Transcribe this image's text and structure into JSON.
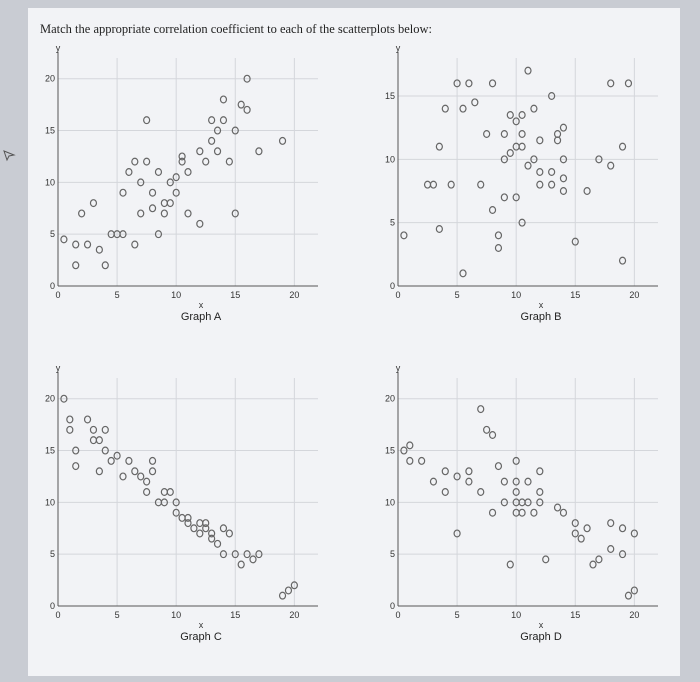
{
  "prompt": "Match the appropriate correlation coefficient to each of the scatterplots below:",
  "chart_data": [
    {
      "type": "scatter",
      "title": "Graph A",
      "xlabel": "x",
      "ylabel": "y",
      "xlim": [
        0,
        22
      ],
      "ylim": [
        0,
        22
      ],
      "xticks": [
        "0",
        "5",
        "10",
        "15",
        "20"
      ],
      "yticks": [
        "0",
        "5",
        "10",
        "15",
        "20"
      ],
      "points": [
        [
          0.5,
          4.5
        ],
        [
          1.5,
          2
        ],
        [
          1.5,
          4
        ],
        [
          2,
          7
        ],
        [
          2.5,
          4
        ],
        [
          3,
          8
        ],
        [
          3.5,
          3.5
        ],
        [
          4,
          2
        ],
        [
          4.5,
          5
        ],
        [
          5,
          5
        ],
        [
          5.5,
          5
        ],
        [
          5.5,
          9
        ],
        [
          6,
          11
        ],
        [
          6.5,
          4
        ],
        [
          6.5,
          12
        ],
        [
          7,
          7
        ],
        [
          7,
          10
        ],
        [
          7.5,
          16
        ],
        [
          7.5,
          12
        ],
        [
          8,
          7.5
        ],
        [
          8,
          9
        ],
        [
          8.5,
          5
        ],
        [
          8.5,
          11
        ],
        [
          9,
          7
        ],
        [
          9,
          8
        ],
        [
          9.5,
          8
        ],
        [
          9.5,
          10
        ],
        [
          10,
          9
        ],
        [
          10,
          10.5
        ],
        [
          10.5,
          12
        ],
        [
          10.5,
          12.5
        ],
        [
          11,
          11
        ],
        [
          11,
          7
        ],
        [
          12,
          6
        ],
        [
          12,
          13
        ],
        [
          12.5,
          12
        ],
        [
          13,
          16
        ],
        [
          13,
          14
        ],
        [
          13.5,
          13
        ],
        [
          13.5,
          15
        ],
        [
          14,
          16
        ],
        [
          14,
          18
        ],
        [
          14.5,
          12
        ],
        [
          15,
          7
        ],
        [
          15,
          15
        ],
        [
          15.5,
          17.5
        ],
        [
          16,
          20
        ],
        [
          16,
          17
        ],
        [
          17,
          13
        ],
        [
          19,
          14
        ]
      ]
    },
    {
      "type": "scatter",
      "title": "Graph B",
      "xlabel": "x",
      "ylabel": "y",
      "xlim": [
        0,
        22
      ],
      "ylim": [
        0,
        18
      ],
      "xticks": [
        "0",
        "5",
        "10",
        "15",
        "20"
      ],
      "yticks": [
        "0",
        "5",
        "10",
        "15"
      ],
      "points": [
        [
          0.5,
          4
        ],
        [
          2.5,
          8
        ],
        [
          3,
          8
        ],
        [
          3.5,
          11
        ],
        [
          3.5,
          4.5
        ],
        [
          4,
          14
        ],
        [
          4.5,
          8
        ],
        [
          5,
          16
        ],
        [
          5.5,
          14
        ],
        [
          5.5,
          1
        ],
        [
          6,
          16
        ],
        [
          6.5,
          14.5
        ],
        [
          7,
          8
        ],
        [
          7.5,
          12
        ],
        [
          8,
          16
        ],
        [
          8,
          6
        ],
        [
          8.5,
          4
        ],
        [
          8.5,
          3
        ],
        [
          9,
          7
        ],
        [
          9,
          10
        ],
        [
          9,
          12
        ],
        [
          9.5,
          13.5
        ],
        [
          9.5,
          10.5
        ],
        [
          10,
          7
        ],
        [
          10,
          11
        ],
        [
          10,
          13
        ],
        [
          10.5,
          11
        ],
        [
          10.5,
          13.5
        ],
        [
          10.5,
          12
        ],
        [
          10.5,
          5
        ],
        [
          11,
          9.5
        ],
        [
          11,
          17
        ],
        [
          11.5,
          10
        ],
        [
          11.5,
          14
        ],
        [
          12,
          11.5
        ],
        [
          12,
          8
        ],
        [
          12,
          9
        ],
        [
          13,
          15
        ],
        [
          13,
          8
        ],
        [
          13,
          9
        ],
        [
          13.5,
          11.5
        ],
        [
          13.5,
          12
        ],
        [
          14,
          12.5
        ],
        [
          14,
          10
        ],
        [
          14,
          8.5
        ],
        [
          14,
          7.5
        ],
        [
          15,
          3.5
        ],
        [
          16,
          7.5
        ],
        [
          17,
          10
        ],
        [
          18,
          9.5
        ],
        [
          18,
          16
        ],
        [
          19,
          11
        ],
        [
          19,
          2
        ],
        [
          19.5,
          16
        ]
      ]
    },
    {
      "type": "scatter",
      "title": "Graph C",
      "xlabel": "x",
      "ylabel": "y",
      "xlim": [
        0,
        22
      ],
      "ylim": [
        0,
        22
      ],
      "xticks": [
        "0",
        "5",
        "10",
        "15",
        "20"
      ],
      "yticks": [
        "0",
        "5",
        "10",
        "15",
        "20"
      ],
      "points": [
        [
          0.5,
          20
        ],
        [
          1,
          18
        ],
        [
          1,
          17
        ],
        [
          1.5,
          15
        ],
        [
          1.5,
          13.5
        ],
        [
          2.5,
          18
        ],
        [
          3,
          17
        ],
        [
          3,
          16
        ],
        [
          3.5,
          16
        ],
        [
          3.5,
          13
        ],
        [
          4,
          17
        ],
        [
          4,
          15
        ],
        [
          4.5,
          14
        ],
        [
          5,
          14.5
        ],
        [
          5.5,
          12.5
        ],
        [
          6,
          14
        ],
        [
          6.5,
          13
        ],
        [
          7,
          12.5
        ],
        [
          7.5,
          12
        ],
        [
          7.5,
          11
        ],
        [
          8,
          14
        ],
        [
          8,
          13
        ],
        [
          8.5,
          10
        ],
        [
          9,
          11
        ],
        [
          9,
          10
        ],
        [
          9.5,
          11
        ],
        [
          10,
          10
        ],
        [
          10,
          9
        ],
        [
          10.5,
          8.5
        ],
        [
          11,
          8.5
        ],
        [
          11,
          8
        ],
        [
          11.5,
          7.5
        ],
        [
          12,
          7
        ],
        [
          12,
          8
        ],
        [
          12.5,
          8
        ],
        [
          12.5,
          7.5
        ],
        [
          13,
          7
        ],
        [
          13,
          6.5
        ],
        [
          13.5,
          6
        ],
        [
          14,
          7.5
        ],
        [
          14.5,
          7
        ],
        [
          14,
          5
        ],
        [
          15,
          5
        ],
        [
          15.5,
          4
        ],
        [
          16,
          5
        ],
        [
          16.5,
          4.5
        ],
        [
          17,
          5
        ],
        [
          19,
          1
        ],
        [
          19.5,
          1.5
        ],
        [
          20,
          2
        ]
      ]
    },
    {
      "type": "scatter",
      "title": "Graph D",
      "xlabel": "x",
      "ylabel": "y",
      "xlim": [
        0,
        22
      ],
      "ylim": [
        0,
        22
      ],
      "xticks": [
        "0",
        "5",
        "10",
        "15",
        "20"
      ],
      "yticks": [
        "0",
        "5",
        "10",
        "15",
        "20"
      ],
      "points": [
        [
          0.5,
          15
        ],
        [
          1,
          15.5
        ],
        [
          1,
          14
        ],
        [
          2,
          14
        ],
        [
          3,
          12
        ],
        [
          4,
          13
        ],
        [
          4,
          11
        ],
        [
          5,
          12.5
        ],
        [
          5,
          7
        ],
        [
          6,
          12
        ],
        [
          6,
          13
        ],
        [
          7,
          11
        ],
        [
          7,
          19
        ],
        [
          7.5,
          17
        ],
        [
          8,
          16.5
        ],
        [
          8,
          9
        ],
        [
          8.5,
          13.5
        ],
        [
          9,
          12
        ],
        [
          9,
          10
        ],
        [
          9.5,
          4
        ],
        [
          10,
          14
        ],
        [
          10,
          12
        ],
        [
          10,
          11
        ],
        [
          10,
          10
        ],
        [
          10,
          9
        ],
        [
          10.5,
          9
        ],
        [
          10.5,
          10
        ],
        [
          11,
          12
        ],
        [
          11,
          10
        ],
        [
          11.5,
          9
        ],
        [
          12,
          13
        ],
        [
          12,
          11
        ],
        [
          12,
          10
        ],
        [
          12.5,
          4.5
        ],
        [
          13.5,
          9.5
        ],
        [
          14,
          9
        ],
        [
          15,
          8
        ],
        [
          15,
          7
        ],
        [
          15.5,
          6.5
        ],
        [
          16,
          7.5
        ],
        [
          16.5,
          4
        ],
        [
          17,
          4.5
        ],
        [
          18,
          5.5
        ],
        [
          18,
          8
        ],
        [
          19,
          7.5
        ],
        [
          19,
          5
        ],
        [
          19.5,
          1
        ],
        [
          20,
          1.5
        ],
        [
          20,
          7
        ]
      ]
    }
  ]
}
